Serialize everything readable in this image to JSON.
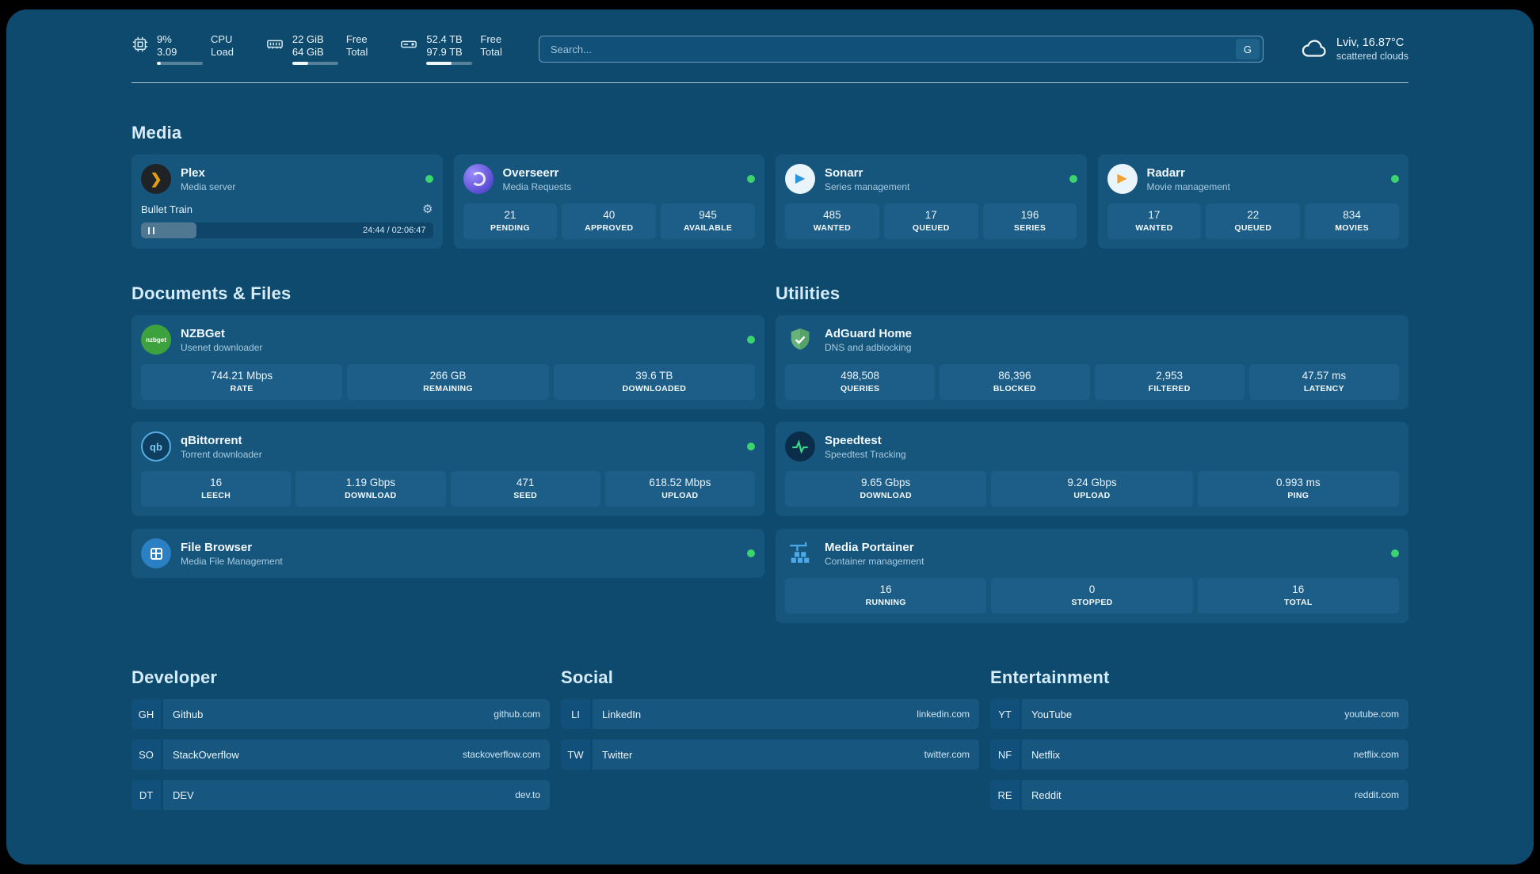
{
  "topbar": {
    "cpu": {
      "v1": "9%",
      "v2": "3.09",
      "label1": "CPU",
      "label2": "Load"
    },
    "ram": {
      "v1": "22 GiB",
      "v2": "64 GiB",
      "label1": "Free",
      "label2": "Total"
    },
    "disk": {
      "v1": "52.4 TB",
      "v2": "97.9 TB",
      "label1": "Free",
      "label2": "Total"
    },
    "search": {
      "placeholder": "Search...",
      "provider_button": "G"
    },
    "weather": {
      "line1": "Lviv, 16.87°C",
      "line2": "scattered clouds"
    }
  },
  "bars": {
    "cpu": "width:9%",
    "ram": "width:35%",
    "disk": "width:54%",
    "plex": "width:19%"
  },
  "sections": {
    "media": "Media",
    "documents": "Documents & Files",
    "utilities": "Utilities",
    "developer": "Developer",
    "social": "Social",
    "entertainment": "Entertainment"
  },
  "apps": {
    "plex": {
      "title": "Plex",
      "subtitle": "Media server",
      "now_playing": "Bullet Train",
      "time": "24:44 / 02:06:47"
    },
    "overseerr": {
      "title": "Overseerr",
      "subtitle": "Media Requests",
      "stats": [
        {
          "value": "21",
          "label": "PENDING"
        },
        {
          "value": "40",
          "label": "APPROVED"
        },
        {
          "value": "945",
          "label": "AVAILABLE"
        }
      ]
    },
    "sonarr": {
      "title": "Sonarr",
      "subtitle": "Series management",
      "stats": [
        {
          "value": "485",
          "label": "WANTED"
        },
        {
          "value": "17",
          "label": "QUEUED"
        },
        {
          "value": "196",
          "label": "SERIES"
        }
      ]
    },
    "radarr": {
      "title": "Radarr",
      "subtitle": "Movie management",
      "stats": [
        {
          "value": "17",
          "label": "WANTED"
        },
        {
          "value": "22",
          "label": "QUEUED"
        },
        {
          "value": "834",
          "label": "MOVIES"
        }
      ]
    },
    "nzbget": {
      "title": "NZBGet",
      "subtitle": "Usenet downloader",
      "logo_text": "nzbget",
      "stats": [
        {
          "value": "744.21 Mbps",
          "label": "RATE"
        },
        {
          "value": "266 GB",
          "label": "REMAINING"
        },
        {
          "value": "39.6 TB",
          "label": "DOWNLOADED"
        }
      ]
    },
    "qbittorrent": {
      "title": "qBittorrent",
      "subtitle": "Torrent downloader",
      "logo_text": "qb",
      "stats": [
        {
          "value": "16",
          "label": "LEECH"
        },
        {
          "value": "1.19 Gbps",
          "label": "DOWNLOAD"
        },
        {
          "value": "471",
          "label": "SEED"
        },
        {
          "value": "618.52 Mbps",
          "label": "UPLOAD"
        }
      ]
    },
    "filebrowser": {
      "title": "File Browser",
      "subtitle": "Media File Management"
    },
    "adguard": {
      "title": "AdGuard Home",
      "subtitle": "DNS and adblocking",
      "stats": [
        {
          "value": "498,508",
          "label": "QUERIES"
        },
        {
          "value": "86,396",
          "label": "BLOCKED"
        },
        {
          "value": "2,953",
          "label": "FILTERED"
        },
        {
          "value": "47.57 ms",
          "label": "LATENCY"
        }
      ]
    },
    "speedtest": {
      "title": "Speedtest",
      "subtitle": "Speedtest Tracking",
      "stats": [
        {
          "value": "9.65 Gbps",
          "label": "DOWNLOAD"
        },
        {
          "value": "9.24 Gbps",
          "label": "UPLOAD"
        },
        {
          "value": "0.993 ms",
          "label": "PING"
        }
      ]
    },
    "portainer": {
      "title": "Media Portainer",
      "subtitle": "Container management",
      "stats": [
        {
          "value": "16",
          "label": "RUNNING"
        },
        {
          "value": "0",
          "label": "STOPPED"
        },
        {
          "value": "16",
          "label": "TOTAL"
        }
      ]
    }
  },
  "links": {
    "developer": [
      {
        "abbr": "GH",
        "name": "Github",
        "domain": "github.com"
      },
      {
        "abbr": "SO",
        "name": "StackOverflow",
        "domain": "stackoverflow.com"
      },
      {
        "abbr": "DT",
        "name": "DEV",
        "domain": "dev.to"
      }
    ],
    "social": [
      {
        "abbr": "LI",
        "name": "LinkedIn",
        "domain": "linkedin.com"
      },
      {
        "abbr": "TW",
        "name": "Twitter",
        "domain": "twitter.com"
      }
    ],
    "entertainment": [
      {
        "abbr": "YT",
        "name": "YouTube",
        "domain": "youtube.com"
      },
      {
        "abbr": "NF",
        "name": "Netflix",
        "domain": "netflix.com"
      },
      {
        "abbr": "RE",
        "name": "Reddit",
        "domain": "reddit.com"
      }
    ]
  },
  "colors": {
    "background": "#0d4a6d",
    "card": "#16567d",
    "tile": "#1d5e88",
    "status_online": "#3bd46e",
    "plex_accent": "#e5a00d",
    "sonarr_accent": "#2d96d8",
    "radarr_accent": "#f0a132",
    "adguard_accent": "#67b279",
    "speedtest_accent": "#39d98a",
    "portainer_accent": "#4aa9e6"
  }
}
